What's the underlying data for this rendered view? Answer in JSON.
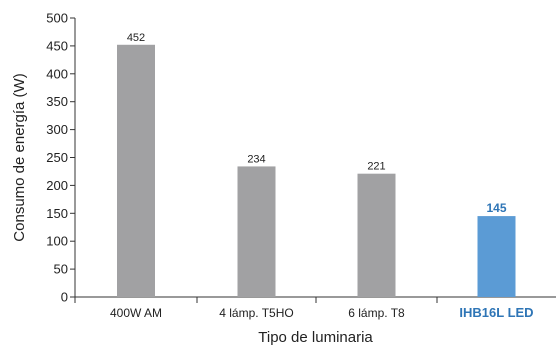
{
  "chart_data": {
    "type": "bar",
    "title": "",
    "xlabel": "Tipo de luminaria",
    "ylabel": "Consumo de energía (W)",
    "ylim": [
      0,
      500
    ],
    "yticks": [
      "0",
      "50",
      "100",
      "150",
      "200",
      "250",
      "300",
      "350",
      "400",
      "450",
      "500"
    ],
    "categories": [
      "400W AM",
      "4 lámp. T5HO",
      "6 lámp. T8",
      "IHB16L LED"
    ],
    "values": [
      452,
      234,
      221,
      145
    ],
    "value_labels": [
      "452",
      "234",
      "221",
      "145"
    ],
    "grid": false,
    "colors": {
      "default_bar": "#a1a1a3",
      "highlight_bar": "#5b9bd5",
      "highlight_text": "#2e75b6",
      "axis": "#333333"
    },
    "highlight_index": 3
  }
}
